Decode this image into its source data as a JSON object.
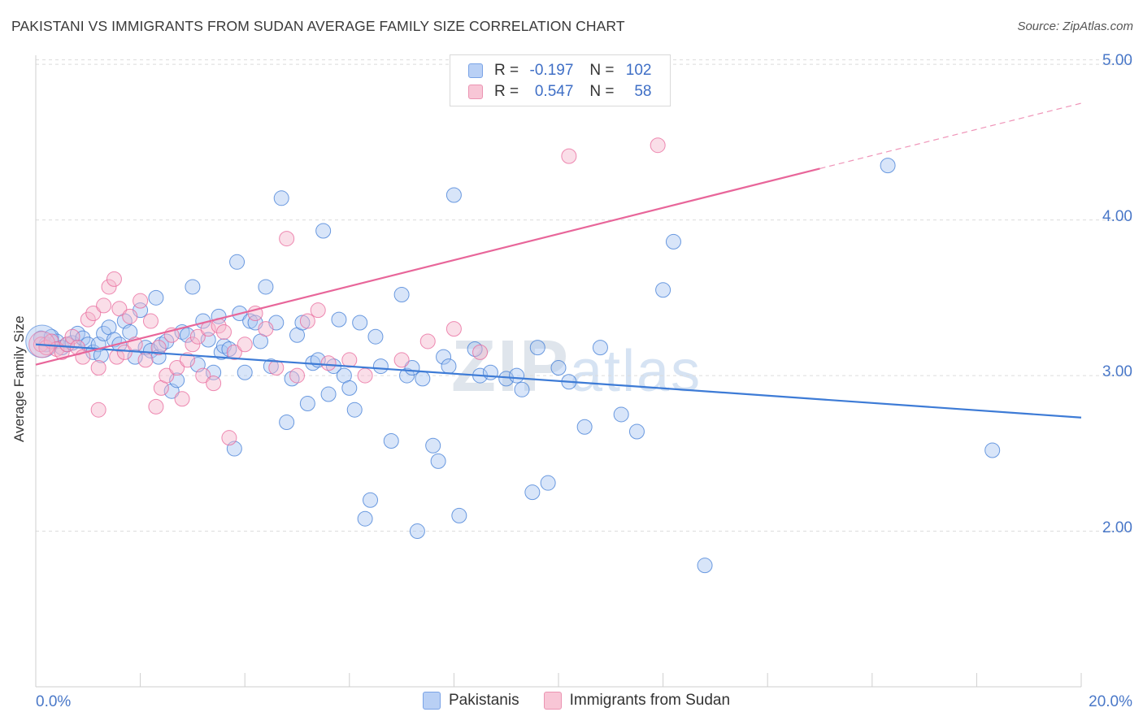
{
  "header": {
    "title": "PAKISTANI VS IMMIGRANTS FROM SUDAN AVERAGE FAMILY SIZE CORRELATION CHART",
    "source": "Source: ZipAtlas.com"
  },
  "watermark": {
    "zip": "ZIP",
    "atlas": "atlas"
  },
  "legend": {
    "r_label": "R =",
    "n_label": "N =",
    "rows": [
      {
        "r": "-0.197",
        "n": "102"
      },
      {
        "r": "0.547",
        "n": "58"
      }
    ]
  },
  "bottom_legend": {
    "series1": "Pakistanis",
    "series2": "Immigrants from Sudan"
  },
  "colors": {
    "blue": "#3d7bd6",
    "pink": "#e8669a",
    "blue_fill": "#a9c6f2",
    "pink_fill": "#f5b6cc"
  },
  "chart_data": {
    "type": "scatter",
    "title": "PAKISTANI VS IMMIGRANTS FROM SUDAN AVERAGE FAMILY SIZE CORRELATION CHART",
    "xlabel": "",
    "ylabel": "Average Family Size",
    "xlim": [
      0,
      20
    ],
    "ylim": [
      1.0,
      5.1
    ],
    "x_tick_labels": [
      "0.0%",
      "20.0%"
    ],
    "y_tick_labels": [
      "2.00",
      "3.00",
      "4.00",
      "5.00"
    ],
    "y_ticks": [
      2.0,
      3.0,
      4.0,
      5.0
    ],
    "grid": true,
    "legend_position": "top-center",
    "series": [
      {
        "name": "Pakistanis",
        "r": -0.197,
        "n": 102,
        "trend": {
          "x": [
            0,
            20
          ],
          "y": [
            3.2,
            2.73
          ]
        },
        "points": [
          [
            0.1,
            3.24
          ],
          [
            0.2,
            3.2
          ],
          [
            0.3,
            3.25
          ],
          [
            0.4,
            3.22
          ],
          [
            0.5,
            3.18
          ],
          [
            0.6,
            3.2
          ],
          [
            0.7,
            3.21
          ],
          [
            0.8,
            3.27
          ],
          [
            0.9,
            3.24
          ],
          [
            1.0,
            3.2
          ],
          [
            1.1,
            3.15
          ],
          [
            1.2,
            3.2
          ],
          [
            1.25,
            3.13
          ],
          [
            1.3,
            3.27
          ],
          [
            1.4,
            3.31
          ],
          [
            1.5,
            3.23
          ],
          [
            1.6,
            3.2
          ],
          [
            1.7,
            3.35
          ],
          [
            1.8,
            3.28
          ],
          [
            1.9,
            3.12
          ],
          [
            2.0,
            3.42
          ],
          [
            2.1,
            3.18
          ],
          [
            2.2,
            3.16
          ],
          [
            2.3,
            3.5
          ],
          [
            2.35,
            3.12
          ],
          [
            2.4,
            3.2
          ],
          [
            2.5,
            3.22
          ],
          [
            2.6,
            2.9
          ],
          [
            2.7,
            2.97
          ],
          [
            2.8,
            3.28
          ],
          [
            2.9,
            3.26
          ],
          [
            3.0,
            3.57
          ],
          [
            3.1,
            3.07
          ],
          [
            3.2,
            3.35
          ],
          [
            3.3,
            3.23
          ],
          [
            3.4,
            3.02
          ],
          [
            3.5,
            3.38
          ],
          [
            3.55,
            3.15
          ],
          [
            3.6,
            3.19
          ],
          [
            3.7,
            3.17
          ],
          [
            3.8,
            2.53
          ],
          [
            3.85,
            3.73
          ],
          [
            3.9,
            3.4
          ],
          [
            4.0,
            3.02
          ],
          [
            4.1,
            3.35
          ],
          [
            4.2,
            3.34
          ],
          [
            4.3,
            3.22
          ],
          [
            4.4,
            3.57
          ],
          [
            4.5,
            3.06
          ],
          [
            4.6,
            3.34
          ],
          [
            4.7,
            4.14
          ],
          [
            4.8,
            2.7
          ],
          [
            4.9,
            2.98
          ],
          [
            5.0,
            3.26
          ],
          [
            5.1,
            3.34
          ],
          [
            5.2,
            2.82
          ],
          [
            5.3,
            3.08
          ],
          [
            5.4,
            3.1
          ],
          [
            5.5,
            3.93
          ],
          [
            5.6,
            2.88
          ],
          [
            5.7,
            3.06
          ],
          [
            5.8,
            3.36
          ],
          [
            5.9,
            3.0
          ],
          [
            6.0,
            2.92
          ],
          [
            6.1,
            2.78
          ],
          [
            6.2,
            3.34
          ],
          [
            6.3,
            2.08
          ],
          [
            6.4,
            2.2
          ],
          [
            6.5,
            3.25
          ],
          [
            6.6,
            3.06
          ],
          [
            6.8,
            2.58
          ],
          [
            7.0,
            3.52
          ],
          [
            7.1,
            3.0
          ],
          [
            7.2,
            3.05
          ],
          [
            7.3,
            2.0
          ],
          [
            7.4,
            2.98
          ],
          [
            7.6,
            2.55
          ],
          [
            7.7,
            2.45
          ],
          [
            7.8,
            3.12
          ],
          [
            7.9,
            3.06
          ],
          [
            8.0,
            4.16
          ],
          [
            8.1,
            2.1
          ],
          [
            8.4,
            3.17
          ],
          [
            8.5,
            3.0
          ],
          [
            8.7,
            3.02
          ],
          [
            9.0,
            2.98
          ],
          [
            9.2,
            3.0
          ],
          [
            9.3,
            2.91
          ],
          [
            9.5,
            2.25
          ],
          [
            9.6,
            3.18
          ],
          [
            9.8,
            2.31
          ],
          [
            10.0,
            3.05
          ],
          [
            10.2,
            2.96
          ],
          [
            10.5,
            2.67
          ],
          [
            10.8,
            3.18
          ],
          [
            11.2,
            2.75
          ],
          [
            11.5,
            2.64
          ],
          [
            12.0,
            3.55
          ],
          [
            12.2,
            3.86
          ],
          [
            12.8,
            1.78
          ],
          [
            16.3,
            4.35
          ],
          [
            18.3,
            2.52
          ]
        ]
      },
      {
        "name": "Immigrants from Sudan",
        "r": 0.547,
        "n": 58,
        "trend": {
          "x": [
            0,
            15
          ],
          "y": [
            3.07,
            4.33
          ]
        },
        "trend_dashed": {
          "x": [
            15,
            20
          ],
          "y": [
            4.33,
            4.75
          ]
        },
        "points": [
          [
            0.1,
            3.2
          ],
          [
            0.2,
            3.18
          ],
          [
            0.3,
            3.22
          ],
          [
            0.4,
            3.17
          ],
          [
            0.5,
            3.15
          ],
          [
            0.6,
            3.2
          ],
          [
            0.7,
            3.25
          ],
          [
            0.8,
            3.18
          ],
          [
            0.9,
            3.12
          ],
          [
            1.0,
            3.36
          ],
          [
            1.1,
            3.4
          ],
          [
            1.2,
            3.05
          ],
          [
            1.3,
            3.45
          ],
          [
            1.4,
            3.57
          ],
          [
            1.5,
            3.62
          ],
          [
            1.55,
            3.12
          ],
          [
            1.6,
            3.43
          ],
          [
            1.7,
            3.15
          ],
          [
            1.8,
            3.38
          ],
          [
            1.9,
            3.2
          ],
          [
            2.0,
            3.48
          ],
          [
            2.1,
            3.1
          ],
          [
            2.2,
            3.35
          ],
          [
            2.3,
            2.8
          ],
          [
            2.35,
            3.18
          ],
          [
            2.4,
            2.92
          ],
          [
            2.5,
            3.0
          ],
          [
            2.6,
            3.26
          ],
          [
            2.7,
            3.05
          ],
          [
            2.8,
            2.85
          ],
          [
            2.9,
            3.1
          ],
          [
            3.0,
            3.2
          ],
          [
            3.1,
            3.25
          ],
          [
            3.2,
            3.0
          ],
          [
            3.3,
            3.3
          ],
          [
            3.4,
            2.95
          ],
          [
            3.5,
            3.32
          ],
          [
            3.6,
            3.28
          ],
          [
            3.7,
            2.6
          ],
          [
            3.8,
            3.15
          ],
          [
            4.0,
            3.2
          ],
          [
            4.2,
            3.4
          ],
          [
            4.4,
            3.3
          ],
          [
            4.6,
            3.05
          ],
          [
            4.8,
            3.88
          ],
          [
            5.0,
            3.0
          ],
          [
            5.2,
            3.35
          ],
          [
            5.4,
            3.42
          ],
          [
            5.6,
            3.08
          ],
          [
            6.0,
            3.1
          ],
          [
            6.3,
            3.0
          ],
          [
            7.0,
            3.1
          ],
          [
            7.5,
            3.22
          ],
          [
            8.0,
            3.3
          ],
          [
            8.5,
            3.15
          ],
          [
            10.2,
            4.41
          ],
          [
            11.9,
            4.48
          ],
          [
            1.2,
            2.78
          ]
        ]
      }
    ]
  }
}
